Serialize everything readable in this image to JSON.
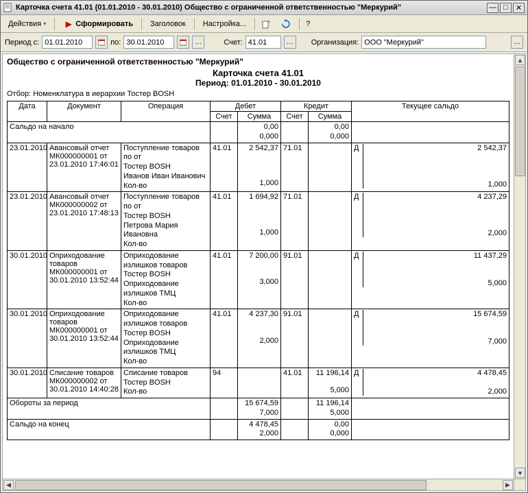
{
  "window": {
    "title": "Карточка счета 41.01 (01.01.2010 - 30.01.2010) Общество с ограниченной ответственностью \"Меркурий\""
  },
  "toolbar": {
    "actions": "Действия",
    "form": "Сформировать",
    "header": "Заголовок",
    "settings": "Настройка...",
    "help": "?"
  },
  "filter": {
    "period_label": "Период с:",
    "date_from": "01.01.2010",
    "to_label": "по:",
    "date_to": "30.01.2010",
    "account_label": "Счет:",
    "account": "41.01",
    "org_label": "Организация:",
    "org": "ООО \"Меркурий\""
  },
  "report": {
    "company": "Общество с ограниченной ответственностью \"Меркурий\"",
    "title": "Карточка счета 41.01",
    "period": "Период: 01.01.2010 - 30.01.2010",
    "selection": "Отбор: Номенклатура в иерархии Тостер BOSH",
    "columns": {
      "date": "Дата",
      "doc": "Документ",
      "oper": "Операция",
      "debet": "Дебет",
      "kredit": "Кредит",
      "acct": "Счет",
      "sum": "Сумма",
      "balance": "Текущее сальдо"
    },
    "opening_label": "Сальдо на начало",
    "opening": {
      "sum": "0,00",
      "qty": "0,000",
      "sum2": "0,00",
      "qty2": "0,000"
    },
    "rows": [
      {
        "date": "23.01.2010",
        "doc": "Авансовый отчет МК000000001 от 23.01.2010 17:46:01",
        "oper": "Поступление товаров\n  по   от\nТостер BOSH\nИванов Иван Иванович\nКол-во",
        "d_acc": "41.01",
        "d_sum": "2 542,37",
        "d_qty": "1,000",
        "k_acc": "71.01",
        "k_sum": "",
        "k_qty": "",
        "side": "Д",
        "bal": "2 542,37",
        "bal_qty": "1,000"
      },
      {
        "date": "23.01.2010",
        "doc": "Авансовый отчет МК000000002 от 23.01.2010 17:48:13",
        "oper": "Поступление товаров\n  по   от\nТостер BOSH\nПетрова  Мария Ивановна\nКол-во",
        "d_acc": "41.01",
        "d_sum": "1 694,92",
        "d_qty": "1,000",
        "k_acc": "71.01",
        "k_sum": "",
        "k_qty": "",
        "side": "Д",
        "bal": "4 237,29",
        "bal_qty": "2,000"
      },
      {
        "date": "30.01.2010",
        "doc": "Оприходование товаров МК000000001 от 30.01.2010 13:52:44",
        "oper": "Оприходование излишков товаров\nТостер BOSH\nОприходование излишков ТМЦ\nКол-во",
        "d_acc": "41.01",
        "d_sum": "7 200,00",
        "d_qty": "3,000",
        "k_acc": "91.01",
        "k_sum": "",
        "k_qty": "",
        "side": "Д",
        "bal": "11 437,29",
        "bal_qty": "5,000"
      },
      {
        "date": "30.01.2010",
        "doc": "Оприходование товаров МК000000001 от 30.01.2010 13:52:44",
        "oper": "Оприходование излишков товаров\nТостер BOSH\nОприходование излишков ТМЦ\nКол-во",
        "d_acc": "41.01",
        "d_sum": "4 237,30",
        "d_qty": "2,000",
        "k_acc": "91.01",
        "k_sum": "",
        "k_qty": "",
        "side": "Д",
        "bal": "15 674,59",
        "bal_qty": "7,000"
      },
      {
        "date": "30.01.2010",
        "doc": "Списание товаров МК000000002 от 30.01.2010 14:40:28",
        "oper": "Списание товаров\nТостер BOSH\nКол-во",
        "d_acc": "94",
        "d_sum": "",
        "d_qty": "",
        "k_acc": "41.01",
        "k_sum": "11 196,14",
        "k_qty": "5,000",
        "side": "Д",
        "bal": "4 478,45",
        "bal_qty": "2,000"
      }
    ],
    "turnover_label": "Обороты за период",
    "turnover": {
      "d_sum": "15 674,59",
      "d_qty": "7,000",
      "k_sum": "11 196,14",
      "k_qty": "5,000"
    },
    "closing_label": "Сальдо на конец",
    "closing": {
      "d_sum": "4 478,45",
      "d_qty": "2,000",
      "k_sum": "0,00",
      "k_qty": "0,000"
    }
  },
  "colors": {
    "window_bg": "#ece9d8",
    "border": "#aca899",
    "input_border": "#7f9db9"
  }
}
